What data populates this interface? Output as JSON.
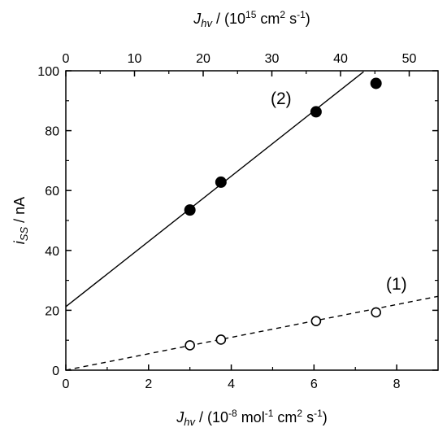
{
  "chart_data": {
    "type": "scatter",
    "x_bottom": {
      "label_main": "J",
      "label_sub": "hv",
      "label_rest": " / (10",
      "label_exp1": "-8",
      "label_mid": " mol",
      "label_exp2": "-1",
      "label_mid2": " cm",
      "label_exp3": "2",
      "label_mid3": " s",
      "label_exp4": "-1",
      "label_end": ")",
      "range": [
        0,
        9
      ],
      "ticks": [
        0,
        2,
        4,
        6,
        8
      ],
      "tick_labels": [
        "0",
        "2",
        "4",
        "6",
        "8"
      ]
    },
    "x_top": {
      "label_main": "J",
      "label_sub": "hv",
      "label_rest": " / (10",
      "label_exp1": "15",
      "label_mid": " cm",
      "label_exp2": "2",
      "label_mid2": " s",
      "label_exp3": "-1",
      "label_end": ")",
      "range": [
        0,
        54.2
      ],
      "ticks": [
        0,
        10,
        20,
        30,
        40,
        50
      ],
      "tick_labels": [
        "0",
        "10",
        "20",
        "30",
        "40",
        "50"
      ]
    },
    "y": {
      "label_main": "i",
      "label_sub": "SS",
      "label_rest": " / nA",
      "range": [
        0,
        100
      ],
      "ticks": [
        0,
        20,
        40,
        60,
        80,
        100
      ],
      "tick_labels": [
        "0",
        "20",
        "40",
        "60",
        "80",
        "100"
      ]
    },
    "series": [
      {
        "name": "(2)",
        "marker": "filled-circle",
        "x": [
          3.0,
          3.75,
          6.05,
          7.5
        ],
        "y": [
          53.5,
          62.8,
          86.3,
          95.8
        ],
        "fit": {
          "style": "solid",
          "slope": 10.9,
          "intercept": 21.2,
          "x_range": [
            0,
            7.2
          ]
        }
      },
      {
        "name": "(1)",
        "marker": "open-circle",
        "x": [
          3.0,
          3.75,
          6.05,
          7.5
        ],
        "y": [
          8.3,
          10.2,
          16.4,
          19.3
        ],
        "fit": {
          "style": "dashed",
          "slope": 2.74,
          "intercept": 0,
          "x_range": [
            0,
            9
          ]
        }
      }
    ],
    "grid": false,
    "legend": "none"
  }
}
